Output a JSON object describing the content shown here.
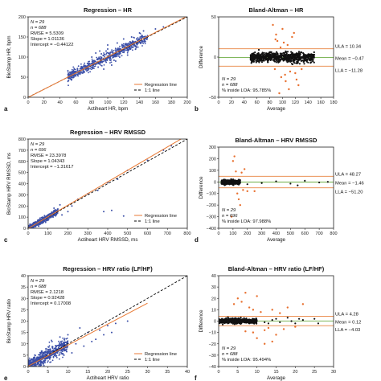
{
  "colors": {
    "scatter_blue": "#3b4fa8",
    "regression_orange": "#e87a35",
    "identity_black": "#000000",
    "limit_orange": "#e8823f",
    "mean_green": "#6fae45",
    "ba_black": "#111111",
    "outlier_orange": "#e8702f",
    "axis": "#222222"
  },
  "chart_data": [
    {
      "id": "a",
      "type": "scatter",
      "panel_letter": "a",
      "title": "Regression – HR",
      "xlabel": "Actiheart HR, bpm",
      "ylabel": "BioStamp HR, bpm",
      "xlim": [
        0,
        200
      ],
      "ylim": [
        0,
        200
      ],
      "xticks": [
        "0",
        "20",
        "40",
        "60",
        "80",
        "100",
        "120",
        "140",
        "160",
        "180",
        "200"
      ],
      "yticks": [
        "0",
        "50",
        "100",
        "150",
        "200"
      ],
      "stats": [
        "N = 29",
        "n = 688",
        "RMSE = 5.5309",
        "Slope = 1.01136",
        "Intercept = −0.44122"
      ],
      "legend": [
        "Regression line",
        "1:1 line"
      ],
      "regression": {
        "slope": 1.01136,
        "intercept": -0.44122
      },
      "cloud": {
        "n": 688,
        "xmin": 50,
        "xmax": 150,
        "spread": 6
      },
      "points": [
        [
          85,
          110
        ],
        [
          90,
          115
        ],
        [
          100,
          130
        ],
        [
          110,
          90
        ],
        [
          120,
          145
        ],
        [
          105,
          80
        ],
        [
          95,
          70
        ],
        [
          130,
          150
        ],
        [
          115,
          100
        ],
        [
          140,
          160
        ],
        [
          80,
          100
        ],
        [
          125,
          105
        ],
        [
          135,
          120
        ],
        [
          145,
          165
        ],
        [
          160,
          170
        ],
        [
          170,
          175
        ],
        [
          100,
          120
        ],
        [
          112,
          135
        ],
        [
          108,
          92
        ],
        [
          92,
          108
        ],
        [
          88,
          75
        ],
        [
          118,
          128
        ],
        [
          128,
          138
        ],
        [
          98,
          115
        ]
      ]
    },
    {
      "id": "b",
      "type": "scatter",
      "panel_letter": "b",
      "title": "Bland-Altman – HR",
      "xlabel": "Average",
      "ylabel": "Difference",
      "xlim": [
        0,
        180
      ],
      "ylim": [
        -50,
        50
      ],
      "xticks": [
        "0",
        "20",
        "40",
        "60",
        "80",
        "100",
        "120",
        "140",
        "160",
        "180"
      ],
      "yticks": [
        "−50",
        "0",
        "50"
      ],
      "stats": [
        "N = 29",
        "n = 688",
        "% inside LOA: 95.785%"
      ],
      "lines": [
        {
          "label": "ULA = 10.34",
          "value": 10.34,
          "kind": "limit"
        },
        {
          "label": "Mean = −0.47",
          "value": -0.47,
          "kind": "mean"
        },
        {
          "label": "LLA = −11.28",
          "value": -11.28,
          "kind": "limit"
        }
      ],
      "cloud": {
        "n": 688,
        "xmin": 50,
        "xmax": 150,
        "center": -0.47,
        "spread": 3
      },
      "outliers": [
        [
          85,
          40
        ],
        [
          90,
          28
        ],
        [
          92,
          20
        ],
        [
          100,
          35
        ],
        [
          98,
          -25
        ],
        [
          105,
          -30
        ],
        [
          110,
          -40
        ],
        [
          95,
          -45
        ],
        [
          115,
          25
        ],
        [
          120,
          -20
        ],
        [
          125,
          -35
        ],
        [
          108,
          15
        ],
        [
          88,
          -15
        ],
        [
          102,
          18
        ],
        [
          112,
          -18
        ],
        [
          118,
          30
        ],
        [
          97,
          12
        ],
        [
          104,
          -22
        ],
        [
          89,
          22
        ],
        [
          122,
          -28
        ],
        [
          130,
          -15
        ]
      ]
    },
    {
      "id": "c",
      "type": "scatter",
      "panel_letter": "c",
      "title": "Regression – HRV RMSSD",
      "xlabel": "Actiheart HRV RMSSD, ms",
      "ylabel": "BioStamp HRV RMSSD, ms",
      "xlim": [
        0,
        800
      ],
      "ylim": [
        0,
        800
      ],
      "xticks": [
        "0",
        "100",
        "200",
        "300",
        "400",
        "500",
        "600",
        "700",
        "800"
      ],
      "yticks": [
        "0",
        "100",
        "200",
        "300",
        "400",
        "500",
        "600",
        "700",
        "800"
      ],
      "stats": [
        "N = 29",
        "n = 696",
        "RMSE = 23.3978",
        "Slope = 1.04343",
        "Intercept = −1.31617"
      ],
      "legend": [
        "Regression line",
        "1:1 line"
      ],
      "regression": {
        "slope": 1.04343,
        "intercept": -1.31617
      },
      "cloud": {
        "n": 696,
        "xmin": 0,
        "xmax": 150,
        "spread": 12
      },
      "points": [
        [
          200,
          150
        ],
        [
          250,
          260
        ],
        [
          300,
          310
        ],
        [
          350,
          340
        ],
        [
          400,
          410
        ],
        [
          450,
          440
        ],
        [
          500,
          520
        ],
        [
          600,
          610
        ],
        [
          680,
          700
        ],
        [
          720,
          740
        ],
        [
          170,
          120
        ],
        [
          220,
          200
        ],
        [
          130,
          180
        ],
        [
          160,
          210
        ],
        [
          380,
          150
        ],
        [
          420,
          160
        ],
        [
          480,
          110
        ]
      ]
    },
    {
      "id": "d",
      "type": "scatter",
      "panel_letter": "d",
      "title": "Bland-Altman – HRV RMSSD",
      "xlabel": "Average",
      "ylabel": "Difference",
      "xlim": [
        0,
        800
      ],
      "ylim": [
        -400,
        300
      ],
      "xticks": [
        "0",
        "100",
        "200",
        "300",
        "400",
        "500",
        "600",
        "700",
        "800"
      ],
      "yticks": [
        "−400",
        "−300",
        "−200",
        "−100",
        "0",
        "100",
        "200",
        "300"
      ],
      "stats": [
        "N = 29",
        "n = 696",
        "% inside LOA: 97.988%"
      ],
      "lines": [
        {
          "label": "ULA = 48.27",
          "value": 48.27,
          "kind": "limit"
        },
        {
          "label": "Mean = −1.46",
          "value": -1.46,
          "kind": "mean"
        },
        {
          "label": "LLA = −51.20",
          "value": -51.2,
          "kind": "limit"
        }
      ],
      "cloud": {
        "n": 696,
        "xmin": 20,
        "xmax": 150,
        "center": -1.46,
        "spread": 8
      },
      "outliers": [
        [
          100,
          180
        ],
        [
          120,
          90
        ],
        [
          130,
          -100
        ],
        [
          140,
          -150
        ],
        [
          150,
          -200
        ],
        [
          90,
          -300
        ],
        [
          110,
          220
        ],
        [
          170,
          -70
        ],
        [
          200,
          -80
        ],
        [
          250,
          -80
        ],
        [
          180,
          110
        ],
        [
          160,
          80
        ]
      ],
      "black_points": [
        [
          200,
          -20
        ],
        [
          300,
          -10
        ],
        [
          400,
          5
        ],
        [
          500,
          -15
        ],
        [
          600,
          10
        ],
        [
          700,
          -5
        ],
        [
          760,
          0
        ],
        [
          550,
          -30
        ]
      ]
    },
    {
      "id": "e",
      "type": "scatter",
      "panel_letter": "e",
      "title": "Regression – HRV ratio (LF/HF)",
      "xlabel": "Actiheart HRV ratio",
      "ylabel": "BioStamp HRV ratio",
      "xlim": [
        0,
        40
      ],
      "ylim": [
        0,
        40
      ],
      "xticks": [
        "0",
        "5",
        "10",
        "15",
        "20",
        "25",
        "30",
        "35",
        "40"
      ],
      "yticks": [
        "0",
        "5",
        "10",
        "15",
        "20",
        "25",
        "30",
        "35",
        "40"
      ],
      "stats": [
        "N = 29",
        "n = 688",
        "RMSE = 2.1218",
        "Slope = 0.92428",
        "Intercept = 0.17008"
      ],
      "legend": [
        "Regression line",
        "1:1 line"
      ],
      "regression": {
        "slope": 0.92428,
        "intercept": 0.17008
      },
      "cloud": {
        "n": 688,
        "xmin": 0,
        "xmax": 10,
        "spread": 1.5
      },
      "points": [
        [
          12,
          10
        ],
        [
          14,
          9
        ],
        [
          15,
          15
        ],
        [
          18,
          16
        ],
        [
          20,
          18
        ],
        [
          22,
          19
        ],
        [
          25,
          20
        ],
        [
          10,
          14
        ],
        [
          8,
          13
        ],
        [
          16,
          11
        ],
        [
          19,
          14
        ],
        [
          13,
          17
        ],
        [
          11,
          6
        ],
        [
          17,
          12
        ],
        [
          21,
          15
        ],
        [
          6,
          11
        ],
        [
          9,
          5
        ]
      ]
    },
    {
      "id": "f",
      "type": "scatter",
      "panel_letter": "f",
      "title": "Bland-Altman – HRV ratio (LF/HF)",
      "xlabel": "Average",
      "ylabel": "Difference",
      "xlim": [
        0,
        30
      ],
      "ylim": [
        -40,
        40
      ],
      "xticks": [
        "0",
        "5",
        "10",
        "15",
        "20",
        "25",
        "30"
      ],
      "yticks": [
        "−40",
        "−30",
        "−20",
        "−10",
        "0",
        "10",
        "20",
        "30",
        "40"
      ],
      "stats": [
        "N = 29",
        "n = 688",
        "% inside LOA: 95.494%"
      ],
      "lines": [
        {
          "label": "ULA = 4.28",
          "value": 4.28,
          "kind": "limit"
        },
        {
          "label": "Mean = 0.12",
          "value": 0.12,
          "kind": "mean"
        },
        {
          "label": "LLA = −4.03",
          "value": -4.03,
          "kind": "limit"
        }
      ],
      "cloud": {
        "n": 688,
        "xmin": 0,
        "xmax": 10,
        "center": 0.12,
        "spread": 1
      },
      "outliers": [
        [
          5,
          20
        ],
        [
          6,
          17
        ],
        [
          7,
          25
        ],
        [
          8,
          12
        ],
        [
          9,
          -10
        ],
        [
          10,
          -15
        ],
        [
          12,
          -8
        ],
        [
          14,
          10
        ],
        [
          15,
          -12
        ],
        [
          4,
          15
        ],
        [
          11,
          8
        ],
        [
          13,
          -6
        ],
        [
          16,
          7
        ],
        [
          18,
          12
        ],
        [
          20,
          -5
        ],
        [
          22,
          15
        ],
        [
          12,
          -20
        ],
        [
          7,
          -9
        ],
        [
          10,
          22
        ],
        [
          14,
          -18
        ],
        [
          17,
          -7
        ],
        [
          9,
          10
        ]
      ],
      "black_points": [
        [
          12,
          -1
        ],
        [
          14,
          1
        ],
        [
          15,
          2
        ],
        [
          16,
          -1
        ],
        [
          18,
          3
        ],
        [
          20,
          -2
        ],
        [
          22,
          1
        ],
        [
          25,
          2
        ],
        [
          26,
          -2
        ],
        [
          13,
          -2
        ],
        [
          19,
          0
        ],
        [
          21,
          2
        ]
      ]
    }
  ]
}
